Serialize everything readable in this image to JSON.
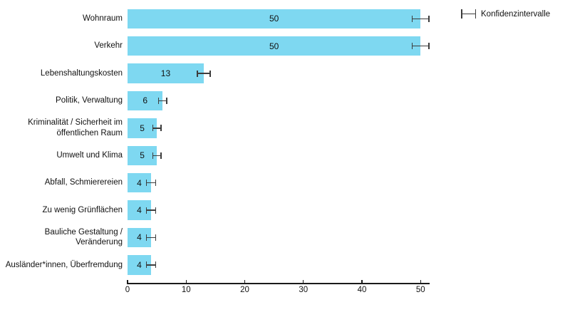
{
  "chart_data": {
    "type": "bar",
    "orientation": "horizontal",
    "title": "",
    "xlabel": "",
    "ylabel": "",
    "categories": [
      "Wohnraum",
      "Verkehr",
      "Lebenshaltungskosten",
      "Politik, Verwaltung",
      "Kriminalität / Sicherheit im öffentlichen Raum",
      "Umwelt und Klima",
      "Abfall, Schmierereien",
      "Zu wenig Grünflächen",
      "Bauliche Gestaltung / Veränderung",
      "Ausländer*innen, Überfremdung"
    ],
    "values": [
      50,
      50,
      13,
      6,
      5,
      5,
      4,
      4,
      4,
      4
    ],
    "value_labels": [
      "50",
      "50",
      "13",
      "6",
      "5",
      "5",
      "4",
      "4",
      "4",
      "4"
    ],
    "confidence_intervals": [
      1.5,
      1.5,
      1.2,
      0.8,
      0.8,
      0.8,
      0.9,
      0.9,
      0.9,
      0.9
    ],
    "xlim": [
      0,
      51.5
    ],
    "xticks": [
      0,
      10,
      20,
      30,
      40,
      50
    ],
    "grid": false,
    "legend": {
      "label": "Konfidenzintervalle",
      "position": "top-right",
      "marker": "errorbar"
    },
    "colors": {
      "bar": "#7ed8f1",
      "errorbar": "#3d3d3d",
      "axis": "#1a1a1a",
      "text": "#111111",
      "background": "#ffffff"
    }
  }
}
